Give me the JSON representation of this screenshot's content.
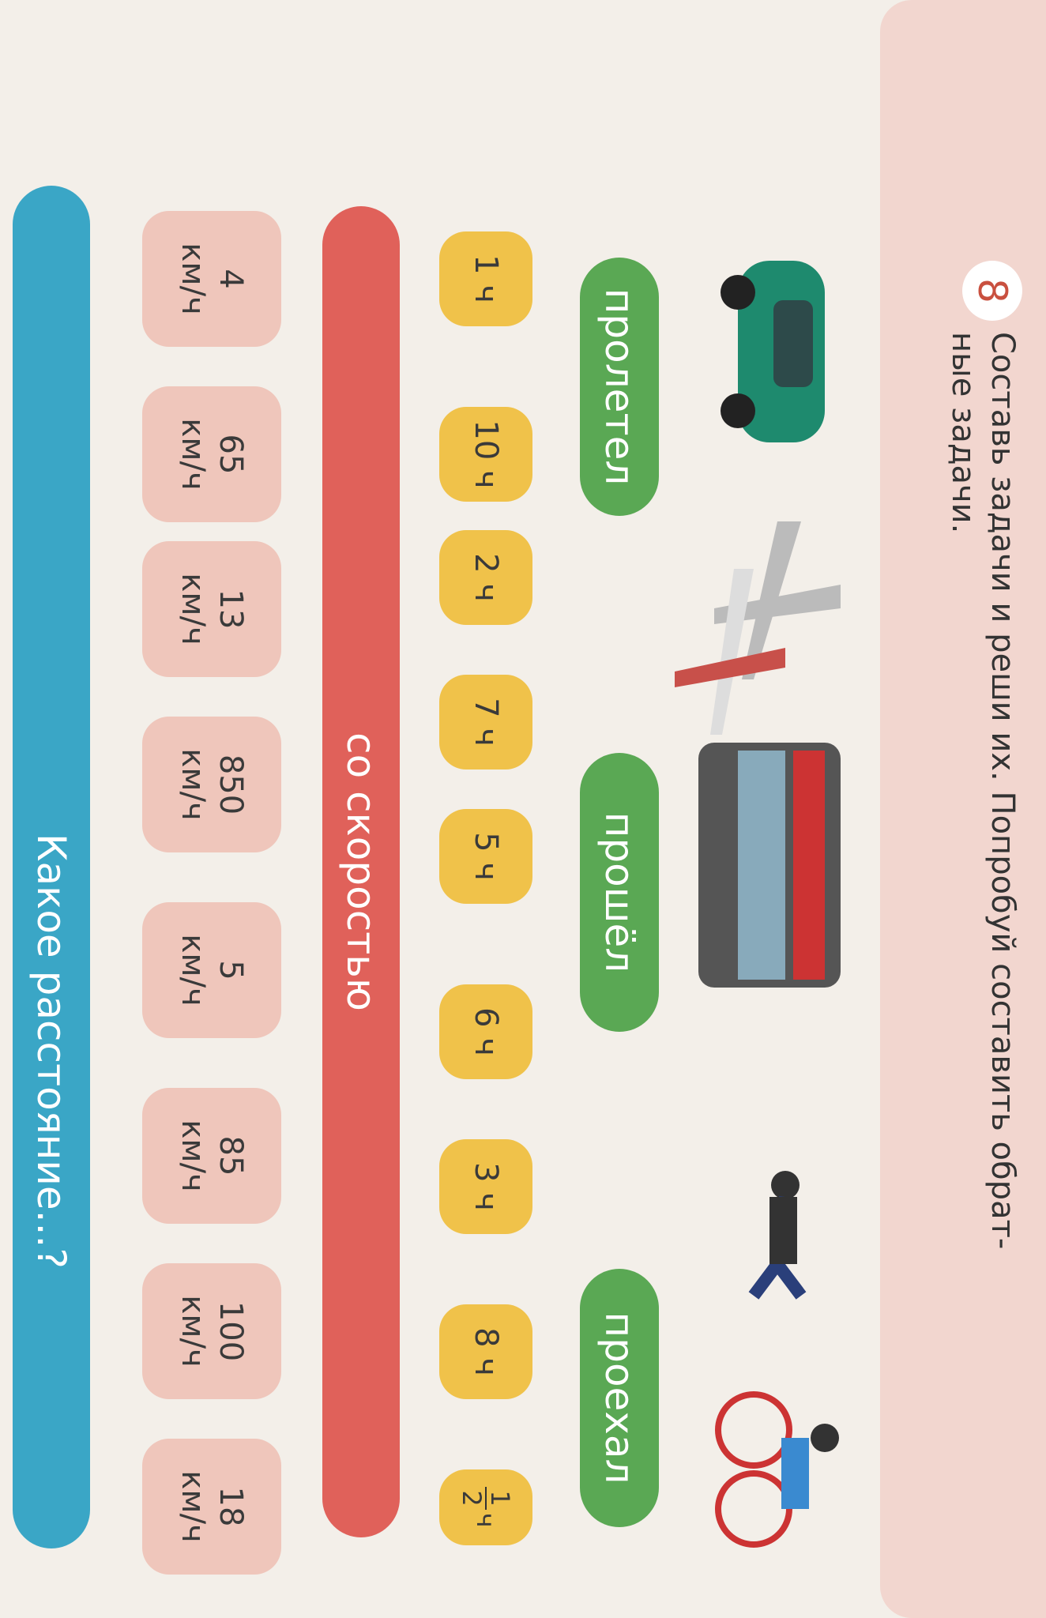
{
  "header": {
    "number": "8",
    "lines": [
      "Составь задачи и реши их. Попробуй составить обрат-",
      "ные задачи."
    ]
  },
  "verbs": [
    "пролетел",
    "прошёл",
    "проехал"
  ],
  "times": [
    "1 ч",
    "10 ч",
    "2 ч",
    "7 ч",
    "5 ч",
    "6 ч",
    "3 ч",
    "8 ч"
  ],
  "half_time": {
    "numerator": "1",
    "denominator": "2",
    "unit": "ч"
  },
  "speed_label": "со скоростью",
  "speeds": [
    {
      "value": "4",
      "unit": "км/ч"
    },
    {
      "value": "65",
      "unit": "км/ч"
    },
    {
      "value": "13",
      "unit": "км/ч"
    },
    {
      "value": "850",
      "unit": "км/ч"
    },
    {
      "value": "5",
      "unit": "км/ч"
    },
    {
      "value": "85",
      "unit": "км/ч"
    },
    {
      "value": "100",
      "unit": "км/ч"
    },
    {
      "value": "18",
      "unit": "км/ч"
    }
  ],
  "question": "Какое расстояние...?"
}
